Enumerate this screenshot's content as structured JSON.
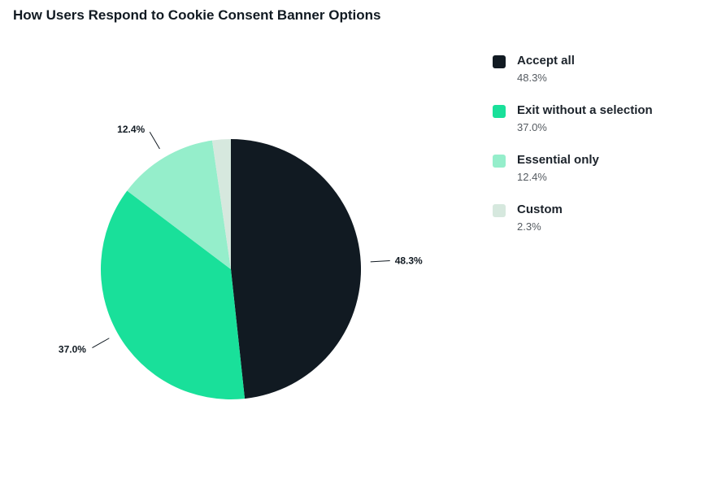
{
  "chart_data": {
    "type": "pie",
    "title": "How Users Respond to Cookie Consent Banner Options",
    "legend_position": "right",
    "slices": [
      {
        "label": "Accept all",
        "value": 48.3,
        "display": "48.3%",
        "color": "#111a22"
      },
      {
        "label": "Exit without a selection",
        "value": 37.0,
        "display": "37.0%",
        "color": "#19e09a"
      },
      {
        "label": "Essential only",
        "value": 12.4,
        "display": "12.4%",
        "color": "#95eecb"
      },
      {
        "label": "Custom",
        "value": 2.3,
        "display": "2.3%",
        "color": "#d6e8de"
      }
    ]
  }
}
